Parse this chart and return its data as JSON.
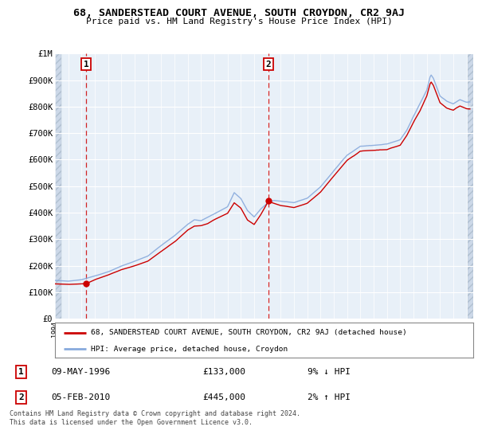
{
  "title": "68, SANDERSTEAD COURT AVENUE, SOUTH CROYDON, CR2 9AJ",
  "subtitle": "Price paid vs. HM Land Registry's House Price Index (HPI)",
  "y_ticks": [
    0,
    100000,
    200000,
    300000,
    400000,
    500000,
    600000,
    700000,
    800000,
    900000,
    1000000
  ],
  "y_tick_labels": [
    "£0",
    "£100K",
    "£200K",
    "£300K",
    "£400K",
    "£500K",
    "£600K",
    "£700K",
    "£800K",
    "£900K",
    "£1M"
  ],
  "x_min": 1994.0,
  "x_max": 2025.5,
  "y_min": 0,
  "y_max": 1000000,
  "hpi_color": "#88aadd",
  "price_color": "#cc0000",
  "sale1_x": 1996.36,
  "sale1_y": 133000,
  "sale2_x": 2010.09,
  "sale2_y": 445000,
  "legend_line1": "68, SANDERSTEAD COURT AVENUE, SOUTH CROYDON, CR2 9AJ (detached house)",
  "legend_line2": "HPI: Average price, detached house, Croydon",
  "note1_label": "1",
  "note1_date": "09-MAY-1996",
  "note1_price": "£133,000",
  "note1_hpi": "9% ↓ HPI",
  "note2_label": "2",
  "note2_date": "05-FEB-2010",
  "note2_price": "£445,000",
  "note2_hpi": "2% ↑ HPI",
  "footer": "Contains HM Land Registry data © Crown copyright and database right 2024.\nThis data is licensed under the Open Government Licence v3.0.",
  "bg_color": "#ddeeff",
  "plot_bg": "#e8f0f8"
}
